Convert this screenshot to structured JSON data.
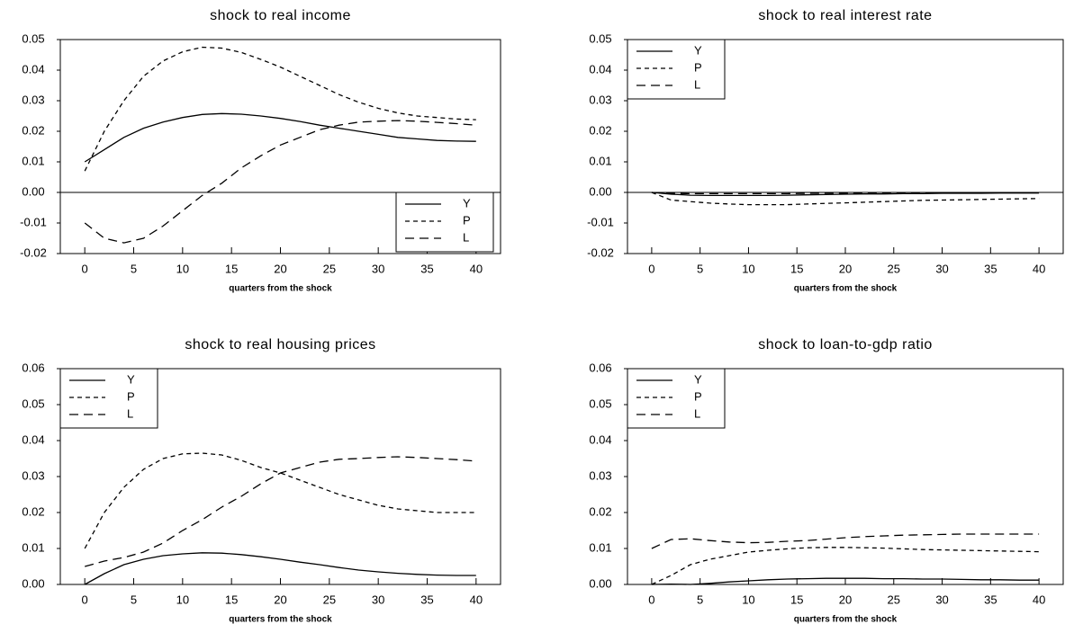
{
  "chart_data": [
    {
      "type": "line",
      "title": "shock to real income",
      "xlabel": "quarters from the shock",
      "x": [
        0,
        2,
        4,
        6,
        8,
        10,
        12,
        14,
        16,
        18,
        20,
        22,
        24,
        26,
        28,
        30,
        32,
        34,
        36,
        38,
        40
      ],
      "xlim": [
        -2.5,
        42.5
      ],
      "xticks": [
        0,
        5,
        10,
        15,
        20,
        25,
        30,
        35,
        40
      ],
      "ylim": [
        -0.02,
        0.05
      ],
      "yticks": [
        -0.02,
        -0.01,
        {
          "value": 0,
          "label": "0.00"
        },
        0.01,
        0.02,
        0.03,
        0.04,
        0.05
      ],
      "zero_line": true,
      "legend": "lower right",
      "series": [
        {
          "name": "Y",
          "color": "#000000",
          "linestyle": "solid",
          "values": [
            0.01,
            0.014,
            0.018,
            0.021,
            0.023,
            0.0245,
            0.0255,
            0.0258,
            0.0256,
            0.025,
            0.0242,
            0.0232,
            0.022,
            0.021,
            0.02,
            0.019,
            0.018,
            0.0175,
            0.017,
            0.0168,
            0.0167
          ]
        },
        {
          "name": "P",
          "color": "#000000",
          "linestyle": "dashed",
          "values": [
            0.007,
            0.02,
            0.03,
            0.038,
            0.043,
            0.046,
            0.0475,
            0.0472,
            0.0458,
            0.0435,
            0.041,
            0.038,
            0.035,
            0.032,
            0.0295,
            0.0275,
            0.026,
            0.025,
            0.0245,
            0.024,
            0.0238
          ]
        },
        {
          "name": "L",
          "color": "#000000",
          "linestyle": "longdash",
          "values": [
            -0.01,
            -0.015,
            -0.0165,
            -0.015,
            -0.011,
            -0.006,
            -0.001,
            0.003,
            0.008,
            0.012,
            0.0155,
            0.018,
            0.0205,
            0.022,
            0.023,
            0.0233,
            0.0235,
            0.0233,
            0.0229,
            0.0225,
            0.022
          ]
        }
      ]
    },
    {
      "type": "line",
      "title": "shock to real interest rate",
      "xlabel": "quarters from the shock",
      "x": [
        0,
        2,
        4,
        6,
        8,
        10,
        12,
        14,
        16,
        18,
        20,
        22,
        24,
        26,
        28,
        30,
        32,
        34,
        36,
        38,
        40
      ],
      "xlim": [
        -2.5,
        42.5
      ],
      "xticks": [
        0,
        5,
        10,
        15,
        20,
        25,
        30,
        35,
        40
      ],
      "ylim": [
        -0.02,
        0.05
      ],
      "yticks": [
        -0.02,
        -0.01,
        {
          "value": 0,
          "label": "0.00"
        },
        0.01,
        0.02,
        0.03,
        0.04,
        0.05
      ],
      "zero_line": true,
      "legend": "upper left",
      "series": [
        {
          "name": "Y",
          "color": "#000000",
          "linestyle": "solid",
          "values": [
            0,
            -0.0006,
            -0.0009,
            -0.001,
            -0.001,
            -0.001,
            -0.001,
            -0.0009,
            -0.0008,
            -0.0007,
            -0.0006,
            -0.0005,
            -0.0005,
            -0.0004,
            -0.0004,
            -0.0003,
            -0.0003,
            -0.0003,
            -0.0002,
            -0.0002,
            -0.0002
          ]
        },
        {
          "name": "P",
          "color": "#000000",
          "linestyle": "dashed",
          "values": [
            0,
            -0.0025,
            -0.003,
            -0.0035,
            -0.0038,
            -0.004,
            -0.004,
            -0.004,
            -0.0038,
            -0.0036,
            -0.0034,
            -0.0032,
            -0.003,
            -0.0028,
            -0.0026,
            -0.0025,
            -0.0024,
            -0.0023,
            -0.0022,
            -0.0021,
            -0.002
          ]
        },
        {
          "name": "L",
          "color": "#000000",
          "linestyle": "longdash",
          "values": [
            0,
            -0.0003,
            -0.0004,
            -0.0004,
            -0.0004,
            -0.0004,
            -0.0004,
            -0.0004,
            -0.0003,
            -0.0003,
            -0.0003,
            -0.0002,
            -0.0002,
            -0.0002,
            -0.0002,
            -0.0001,
            -0.0001,
            -0.0001,
            -0.0001,
            -0.0001,
            -0.0001
          ]
        }
      ]
    },
    {
      "type": "line",
      "title": "shock to real housing prices",
      "xlabel": "quarters from the shock",
      "x": [
        0,
        2,
        4,
        6,
        8,
        10,
        12,
        14,
        16,
        18,
        20,
        22,
        24,
        26,
        28,
        30,
        32,
        34,
        36,
        38,
        40
      ],
      "xlim": [
        -2.5,
        42.5
      ],
      "xticks": [
        0,
        5,
        10,
        15,
        20,
        25,
        30,
        35,
        40
      ],
      "ylim": [
        0,
        0.06
      ],
      "yticks": [
        {
          "value": 0,
          "label": "0.00"
        },
        0.01,
        0.02,
        0.03,
        0.04,
        0.05,
        0.06
      ],
      "zero_line": false,
      "legend": "upper left",
      "series": [
        {
          "name": "Y",
          "color": "#000000",
          "linestyle": "solid",
          "values": [
            0,
            0.003,
            0.0055,
            0.007,
            0.008,
            0.0085,
            0.0088,
            0.0087,
            0.0083,
            0.0077,
            0.007,
            0.0062,
            0.0055,
            0.0047,
            0.004,
            0.0035,
            0.0031,
            0.0028,
            0.0026,
            0.0025,
            0.0025
          ]
        },
        {
          "name": "P",
          "color": "#000000",
          "linestyle": "dashed",
          "values": [
            0.01,
            0.02,
            0.027,
            0.032,
            0.035,
            0.0363,
            0.0365,
            0.036,
            0.0345,
            0.0325,
            0.031,
            0.029,
            0.027,
            0.025,
            0.0235,
            0.022,
            0.021,
            0.0205,
            0.02,
            0.02,
            0.02
          ]
        },
        {
          "name": "L",
          "color": "#000000",
          "linestyle": "longdash",
          "values": [
            0.005,
            0.0065,
            0.0075,
            0.009,
            0.0115,
            0.015,
            0.018,
            0.0215,
            0.0245,
            0.028,
            0.031,
            0.0325,
            0.034,
            0.0348,
            0.035,
            0.0353,
            0.0355,
            0.0353,
            0.035,
            0.0347,
            0.0343
          ]
        }
      ]
    },
    {
      "type": "line",
      "title": "shock to loan-to-gdp ratio",
      "xlabel": "quarters from the shock",
      "x": [
        0,
        2,
        4,
        6,
        8,
        10,
        12,
        14,
        16,
        18,
        20,
        22,
        24,
        26,
        28,
        30,
        32,
        34,
        36,
        38,
        40
      ],
      "xlim": [
        -2.5,
        42.5
      ],
      "xticks": [
        0,
        5,
        10,
        15,
        20,
        25,
        30,
        35,
        40
      ],
      "ylim": [
        0,
        0.06
      ],
      "yticks": [
        {
          "value": 0,
          "label": "0.00"
        },
        0.01,
        0.02,
        0.03,
        0.04,
        0.05,
        0.06
      ],
      "zero_line": false,
      "legend": "upper left",
      "series": [
        {
          "name": "Y",
          "color": "#000000",
          "linestyle": "solid",
          "values": [
            0,
            0.0001,
            0,
            0.0003,
            0.0007,
            0.001,
            0.0013,
            0.0015,
            0.0016,
            0.0017,
            0.0017,
            0.0017,
            0.0016,
            0.0016,
            0.0015,
            0.0015,
            0.0014,
            0.0013,
            0.0013,
            0.0012,
            0.0012
          ]
        },
        {
          "name": "P",
          "color": "#000000",
          "linestyle": "dashed",
          "values": [
            0,
            0.0025,
            0.0055,
            0.007,
            0.008,
            0.009,
            0.0095,
            0.0099,
            0.0102,
            0.0103,
            0.0103,
            0.0102,
            0.0101,
            0.0099,
            0.0097,
            0.0096,
            0.0095,
            0.0094,
            0.0093,
            0.0092,
            0.0091
          ]
        },
        {
          "name": "L",
          "color": "#000000",
          "linestyle": "longdash",
          "values": [
            0.01,
            0.0125,
            0.0127,
            0.0122,
            0.0118,
            0.0116,
            0.0117,
            0.012,
            0.0122,
            0.0126,
            0.013,
            0.0133,
            0.0135,
            0.0137,
            0.0138,
            0.0139,
            0.014,
            0.014,
            0.014,
            0.014,
            0.014
          ]
        }
      ]
    }
  ]
}
